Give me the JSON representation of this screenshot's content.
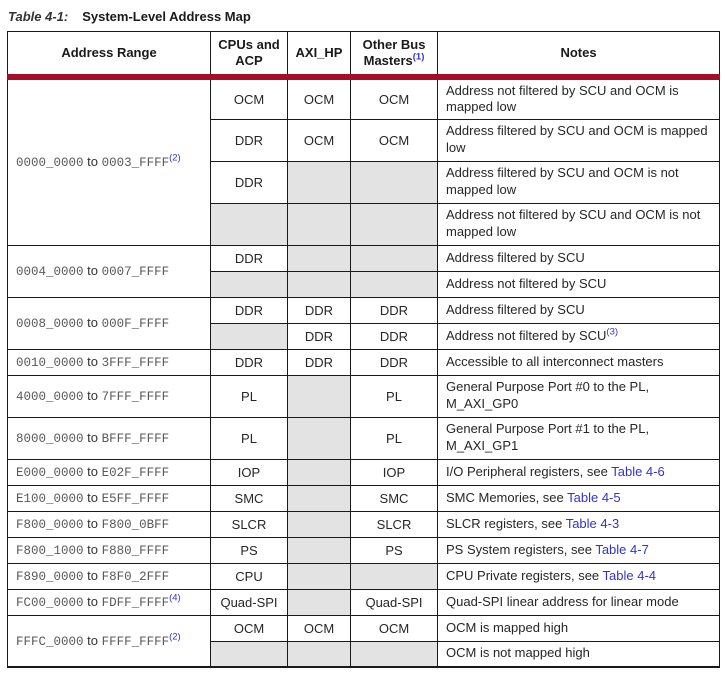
{
  "title": {
    "label": "Table 4-1:",
    "text": "System-Level Address Map"
  },
  "colors": {
    "header_rule_red": "#A50E24",
    "link_blue": "#3333CC",
    "shaded_cell_gray": "#E3E3E3",
    "address_hex_gray": "#595959"
  },
  "table": {
    "header": [
      {
        "label": "Address Range"
      },
      {
        "label": "CPUs and ACP"
      },
      {
        "label": "AXI_HP"
      },
      {
        "label": "Other Bus Masters",
        "sup": "(1)"
      },
      {
        "label": "Notes"
      }
    ],
    "groups": [
      {
        "address": {
          "start": "0000_0000",
          "to": "to",
          "end": "0003_FFFF",
          "sup": "(2)"
        },
        "rows": [
          {
            "tall": true,
            "cpus": "OCM",
            "axi": "OCM",
            "obm": "OCM",
            "note": [
              {
                "style": "plain",
                "text": "Address not filtered by SCU and OCM is mapped low"
              }
            ]
          },
          {
            "tall": true,
            "cpus": "DDR",
            "axi": "OCM",
            "obm": "OCM",
            "note": [
              {
                "style": "plain",
                "text": "Address filtered by SCU and OCM is mapped low"
              }
            ]
          },
          {
            "tall": true,
            "cpus": "DDR",
            "axi": null,
            "obm": null,
            "note": [
              {
                "style": "plain",
                "text": "Address filtered by SCU and OCM is not mapped low"
              }
            ]
          },
          {
            "tall": true,
            "cpus": null,
            "axi": null,
            "obm": null,
            "note": [
              {
                "style": "plain",
                "text": "Address not filtered by SCU and OCM is not mapped low"
              }
            ]
          }
        ]
      },
      {
        "address": {
          "start": "0004_0000",
          "to": "to",
          "end": "0007_FFFF"
        },
        "rows": [
          {
            "cpus": "DDR",
            "axi": null,
            "obm": null,
            "note": [
              {
                "style": "plain",
                "text": "Address filtered by SCU"
              }
            ]
          },
          {
            "cpus": null,
            "axi": null,
            "obm": null,
            "note": [
              {
                "style": "plain",
                "text": "Address not filtered by SCU"
              }
            ]
          }
        ]
      },
      {
        "address": {
          "start": "0008_0000",
          "to": "to",
          "end": "000F_FFFF"
        },
        "rows": [
          {
            "cpus": "DDR",
            "axi": "DDR",
            "obm": "DDR",
            "note": [
              {
                "style": "plain",
                "text": "Address filtered by SCU"
              }
            ]
          },
          {
            "cpus": null,
            "axi": "DDR",
            "obm": "DDR",
            "note": [
              {
                "style": "plain",
                "text": "Address not filtered by SCU"
              },
              {
                "style": "sup",
                "text": "(3)"
              }
            ]
          }
        ]
      },
      {
        "address": {
          "start": "0010_0000",
          "to": "to",
          "end": "3FFF_FFFF"
        },
        "rows": [
          {
            "cpus": "DDR",
            "axi": "DDR",
            "obm": "DDR",
            "note": [
              {
                "style": "plain",
                "text": "Accessible to all interconnect masters"
              }
            ]
          }
        ]
      },
      {
        "address": {
          "start": "4000_0000",
          "to": "to",
          "end": "7FFF_FFFF"
        },
        "rows": [
          {
            "tall": true,
            "cpus": "PL",
            "axi": null,
            "obm": "PL",
            "note": [
              {
                "style": "plain",
                "text": "General Purpose Port #0 to the PL, M_AXI_GP0"
              }
            ]
          }
        ]
      },
      {
        "address": {
          "start": "8000_0000",
          "to": "to",
          "end": "BFFF_FFFF"
        },
        "rows": [
          {
            "tall": true,
            "cpus": "PL",
            "axi": null,
            "obm": "PL",
            "note": [
              {
                "style": "plain",
                "text": "General Purpose Port #1 to the PL, M_AXI_GP1"
              }
            ]
          }
        ]
      },
      {
        "address": {
          "start": "E000_0000",
          "to": "to",
          "end": "E02F_FFFF"
        },
        "rows": [
          {
            "cpus": "IOP",
            "axi": null,
            "obm": "IOP",
            "note": [
              {
                "style": "plain",
                "text": "I/O Peripheral registers, see "
              },
              {
                "style": "link",
                "text": "Table 4-6"
              }
            ]
          }
        ]
      },
      {
        "address": {
          "start": "E100_0000",
          "to": "to",
          "end": "E5FF_FFFF"
        },
        "rows": [
          {
            "cpus": "SMC",
            "axi": null,
            "obm": "SMC",
            "note": [
              {
                "style": "plain",
                "text": "SMC Memories, see "
              },
              {
                "style": "link",
                "text": "Table 4-5"
              }
            ]
          }
        ]
      },
      {
        "address": {
          "start": "F800_0000",
          "to": "to",
          "end": "F800_0BFF"
        },
        "rows": [
          {
            "cpus": "SLCR",
            "axi": null,
            "obm": "SLCR",
            "note": [
              {
                "style": "plain",
                "text": "SLCR registers, see "
              },
              {
                "style": "link",
                "text": "Table 4-3"
              }
            ]
          }
        ]
      },
      {
        "address": {
          "start": "F800_1000",
          "to": "to",
          "end": "F880_FFFF"
        },
        "rows": [
          {
            "cpus": "PS",
            "axi": null,
            "obm": "PS",
            "note": [
              {
                "style": "plain",
                "text": "PS System registers, see "
              },
              {
                "style": "link",
                "text": "Table 4-7"
              }
            ]
          }
        ]
      },
      {
        "address": {
          "start": "F890_0000",
          "to": "to",
          "end": "F8F0_2FFF"
        },
        "rows": [
          {
            "cpus": "CPU",
            "axi": null,
            "obm": null,
            "note": [
              {
                "style": "plain",
                "text": "CPU Private registers, see "
              },
              {
                "style": "link",
                "text": "Table 4-4"
              }
            ]
          }
        ]
      },
      {
        "address": {
          "start": "FC00_0000",
          "to": "to",
          "end": "FDFF_FFFF",
          "sup": "(4)"
        },
        "rows": [
          {
            "cpus": "Quad-SPI",
            "axi": null,
            "obm": "Quad-SPI",
            "note": [
              {
                "style": "plain",
                "text": "Quad-SPI linear address for linear mode"
              }
            ]
          }
        ]
      },
      {
        "address": {
          "start": "FFFC_0000",
          "to": "to",
          "end": "FFFF_FFFF",
          "sup": "(2)"
        },
        "rows": [
          {
            "cpus": "OCM",
            "axi": "OCM",
            "obm": "OCM",
            "note": [
              {
                "style": "plain",
                "text": "OCM is mapped high"
              }
            ]
          },
          {
            "cpus": null,
            "axi": null,
            "obm": null,
            "note": [
              {
                "style": "plain",
                "text": "OCM is not mapped high"
              }
            ]
          }
        ]
      }
    ]
  }
}
